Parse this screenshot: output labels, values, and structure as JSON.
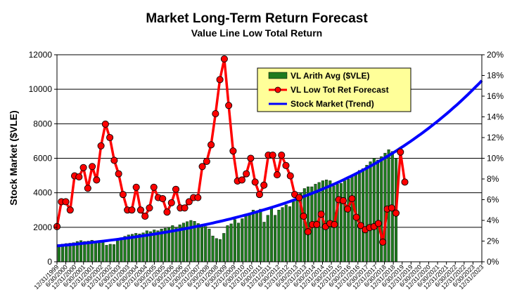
{
  "chart_data": {
    "type": "bar+line",
    "title": "Market Long-Term Return Forecast",
    "subtitle": "Value Line Low Total Return",
    "ylabel": "Stock Market ($VLE)",
    "ylim": [
      0,
      12000
    ],
    "yticks": [
      "0",
      "2000",
      "4000",
      "6000",
      "8000",
      "10000",
      "12000"
    ],
    "y2lim": [
      0,
      20
    ],
    "y2ticks": [
      "0%",
      "2%",
      "4%",
      "6%",
      "8%",
      "10%",
      "12%",
      "14%",
      "16%",
      "18%",
      "20%"
    ],
    "grid": true,
    "legend_position": "top-right",
    "x_tick_labels": [
      "12/31/1999",
      "6/30/2000",
      "12/31/2000",
      "6/30/2001",
      "12/31/2001",
      "6/30/2002",
      "12/31/2002",
      "6/30/2003",
      "12/31/2003",
      "6/30/2004",
      "12/31/2004",
      "6/30/2005",
      "12/31/2005",
      "6/30/2006",
      "12/31/2006",
      "6/30/2007",
      "12/31/2007",
      "6/30/2008",
      "12/31/2008",
      "6/30/2009",
      "12/31/2009",
      "6/30/2010",
      "12/31/2010",
      "6/30/2011",
      "12/31/2011",
      "6/30/2012",
      "12/31/2012",
      "6/30/2013",
      "12/31/2013",
      "6/30/2014",
      "12/31/2014",
      "6/30/2015",
      "12/31/2015",
      "6/30/2016",
      "12/31/2016",
      "6/30/2017",
      "12/31/2017",
      "6/30/2018",
      "12/31/2018",
      "6/30/2019",
      "12/31/2019",
      "6/30/2020",
      "12/31/2020",
      "6/30/2021",
      "12/31/2021",
      "6/30/2022",
      "12/31/2022",
      "6/30/2023",
      "12/31/2023"
    ],
    "series": [
      {
        "name": "VL Arith Avg ($VLE)",
        "kind": "bar",
        "axis": "left",
        "color": "#1e7b1e",
        "values": [
          1000,
          1030,
          1060,
          1080,
          1110,
          1180,
          1230,
          1180,
          1200,
          1250,
          1180,
          1230,
          1130,
          960,
          1020,
          1000,
          1290,
          1400,
          1480,
          1560,
          1600,
          1650,
          1620,
          1680,
          1800,
          1750,
          1850,
          1800,
          1900,
          1950,
          2000,
          2100,
          2000,
          2150,
          2250,
          2330,
          2400,
          2350,
          2220,
          2150,
          2050,
          1900,
          1500,
          1350,
          1300,
          1650,
          2100,
          2200,
          2450,
          2250,
          2500,
          2700,
          2800,
          3000,
          2900,
          3050,
          2300,
          2700,
          3100,
          2700,
          3000,
          3150,
          3300,
          3200,
          3500,
          3700,
          4000,
          4250,
          4350,
          4350,
          4500,
          4600,
          4700,
          4750,
          4700,
          4400,
          4500,
          4550,
          4700,
          4800,
          4950,
          5100,
          5300,
          5400,
          5600,
          5800,
          6000,
          5900,
          6100,
          6300,
          6500,
          6400,
          6000
        ]
      },
      {
        "name": "VL Low Tot Ret Forecast",
        "kind": "line-markers",
        "axis": "right",
        "color": "#ff0000",
        "values": [
          3.4,
          5.8,
          5.8,
          5.0,
          8.3,
          8.2,
          9.1,
          7.1,
          9.2,
          7.9,
          11.2,
          13.3,
          12.0,
          9.8,
          8.5,
          6.5,
          5.0,
          5.0,
          7.2,
          5.0,
          4.4,
          5.2,
          7.2,
          6.2,
          6.1,
          4.8,
          5.7,
          7.0,
          5.2,
          5.2,
          5.8,
          6.2,
          6.2,
          9.2,
          9.7,
          11.3,
          14.3,
          17.6,
          19.6,
          15.1,
          10.7,
          7.8,
          7.9,
          8.5,
          10.0,
          7.7,
          6.5,
          7.4,
          10.3,
          10.3,
          8.4,
          10.3,
          9.3,
          8.3,
          6.5,
          6.2,
          4.4,
          2.9,
          3.6,
          3.6,
          4.6,
          3.4,
          3.7,
          3.6,
          6.0,
          5.9,
          5.1,
          6.1,
          4.3,
          3.5,
          3.1,
          3.3,
          3.4,
          3.7,
          1.9,
          5.1,
          5.2,
          4.7,
          10.6,
          7.7
        ]
      },
      {
        "name": "Stock Market (Trend)",
        "kind": "line",
        "axis": "left",
        "color": "#0000ff",
        "start_value": 920,
        "end_value": 10500
      }
    ]
  }
}
